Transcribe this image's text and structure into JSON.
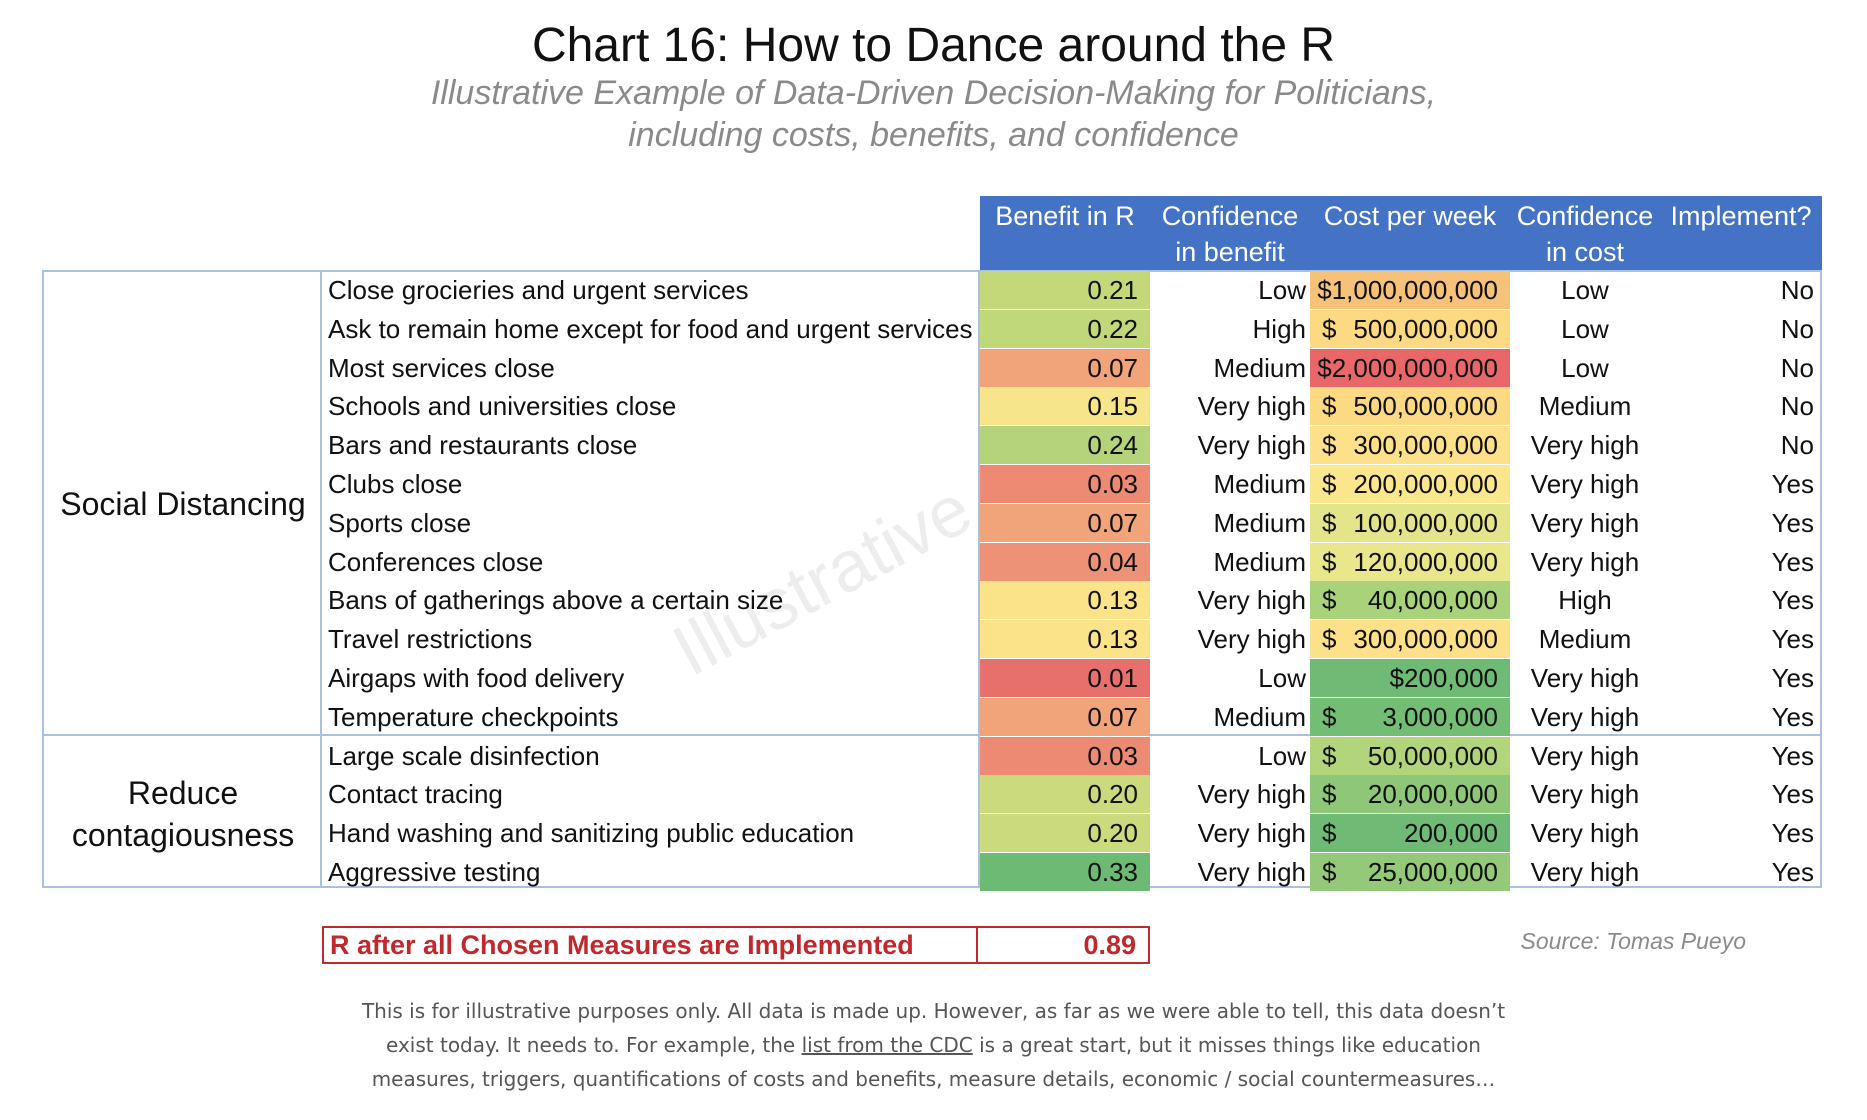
{
  "title": "Chart 16: How to Dance around the R",
  "subtitle_line1": "Illustrative Example of Data-Driven Decision-Making for Politicians,",
  "subtitle_line2": "including costs, benefits, and confidence",
  "watermark": "Illustrative",
  "colors": {
    "header_blue": "#4472c4",
    "border_blue": "#a9c0e3",
    "highlight_red": "#c0282d"
  },
  "chart_data": {
    "type": "table",
    "columns": [
      "Benefit in R",
      "Confidence in benefit",
      "Cost per week",
      "Confidence in cost",
      "Implement?"
    ],
    "column_header_lines": [
      [
        "Benefit in R",
        ""
      ],
      [
        "Confidence",
        "in benefit"
      ],
      [
        "Cost per week",
        ""
      ],
      [
        "Confidence",
        "in cost"
      ],
      [
        "Implement?",
        ""
      ]
    ],
    "groups": [
      {
        "label_lines": [
          "Social Distancing"
        ],
        "rows": [
          0,
          11
        ]
      },
      {
        "label_lines": [
          "Reduce",
          "contagiousness"
        ],
        "rows": [
          12,
          15
        ]
      }
    ],
    "rows": [
      {
        "measure": "Close grocieries and urgent services",
        "benefit": 0.21,
        "benefit_text": "0.21",
        "benefit_color": "#c4d87a",
        "conf_benefit": "Low",
        "cost_dollar": "",
        "cost": "$1,000,000,000",
        "cost_color": "#f6c27a",
        "conf_cost": "Low",
        "implement": "No"
      },
      {
        "measure": "Ask to remain home except for food and urgent services",
        "benefit": 0.22,
        "benefit_text": "0.22",
        "benefit_color": "#c0d77a",
        "conf_benefit": "High",
        "cost_dollar": "$",
        "cost": "500,000,000",
        "cost_color": "#fcd983",
        "conf_cost": "Low",
        "implement": "No"
      },
      {
        "measure": "Most services close",
        "benefit": 0.07,
        "benefit_text": "0.07",
        "benefit_color": "#f1a47a",
        "conf_benefit": "Medium",
        "cost_dollar": "",
        "cost": "$2,000,000,000",
        "cost_color": "#e8686a",
        "conf_cost": "Low",
        "implement": "No"
      },
      {
        "measure": "Schools and universities close",
        "benefit": 0.15,
        "benefit_text": "0.15",
        "benefit_color": "#f7e58b",
        "conf_benefit": "Very high",
        "cost_dollar": "$",
        "cost": "500,000,000",
        "cost_color": "#fcd983",
        "conf_cost": "Medium",
        "implement": "No"
      },
      {
        "measure": "Bars and restaurants close",
        "benefit": 0.24,
        "benefit_text": "0.24",
        "benefit_color": "#b5d37b",
        "conf_benefit": "Very high",
        "cost_dollar": "$",
        "cost": "300,000,000",
        "cost_color": "#fde18a",
        "conf_cost": "Very high",
        "implement": "No"
      },
      {
        "measure": "Clubs close",
        "benefit": 0.03,
        "benefit_text": "0.03",
        "benefit_color": "#ec8a74",
        "conf_benefit": "Medium",
        "cost_dollar": "$",
        "cost": "200,000,000",
        "cost_color": "#fae68d",
        "conf_cost": "Very high",
        "implement": "Yes"
      },
      {
        "measure": "Sports close",
        "benefit": 0.07,
        "benefit_text": "0.07",
        "benefit_color": "#f1a47a",
        "conf_benefit": "Medium",
        "cost_dollar": "$",
        "cost": "100,000,000",
        "cost_color": "#e4e48a",
        "conf_cost": "Very high",
        "implement": "Yes"
      },
      {
        "measure": "Conferences close",
        "benefit": 0.04,
        "benefit_text": "0.04",
        "benefit_color": "#ed9276",
        "conf_benefit": "Medium",
        "cost_dollar": "$",
        "cost": "120,000,000",
        "cost_color": "#e9e68b",
        "conf_cost": "Very high",
        "implement": "Yes"
      },
      {
        "measure": "Bans of gatherings above a certain size",
        "benefit": 0.13,
        "benefit_text": "0.13",
        "benefit_color": "#fbe38a",
        "conf_benefit": "Very high",
        "cost_dollar": "$",
        "cost": "40,000,000",
        "cost_color": "#a9d27b",
        "conf_cost": "High",
        "implement": "Yes"
      },
      {
        "measure": "Travel restrictions",
        "benefit": 0.13,
        "benefit_text": "0.13",
        "benefit_color": "#fbe38a",
        "conf_benefit": "Very high",
        "cost_dollar": "$",
        "cost": "300,000,000",
        "cost_color": "#fde18a",
        "conf_cost": "Medium",
        "implement": "Yes"
      },
      {
        "measure": "Airgaps with food delivery",
        "benefit": 0.01,
        "benefit_text": "0.01",
        "benefit_color": "#e8706c",
        "conf_benefit": "Low",
        "cost_dollar": "",
        "cost": "$200,000",
        "cost_color": "#6fbb75",
        "conf_cost": "Very high",
        "implement": "Yes"
      },
      {
        "measure": "Temperature checkpoints",
        "benefit": 0.07,
        "benefit_text": "0.07",
        "benefit_color": "#f1a47a",
        "conf_benefit": "Medium",
        "cost_dollar": "$",
        "cost": "3,000,000",
        "cost_color": "#74bd75",
        "conf_cost": "Very high",
        "implement": "Yes"
      },
      {
        "measure": "Large scale disinfection",
        "benefit": 0.03,
        "benefit_text": "0.03",
        "benefit_color": "#ec8a74",
        "conf_benefit": "Low",
        "cost_dollar": "$",
        "cost": "50,000,000",
        "cost_color": "#b2d57c",
        "conf_cost": "Very high",
        "implement": "Yes"
      },
      {
        "measure": "Contact tracing",
        "benefit": 0.2,
        "benefit_text": "0.20",
        "benefit_color": "#cbda7c",
        "conf_benefit": "Very high",
        "cost_dollar": "$",
        "cost": "20,000,000",
        "cost_color": "#8ec778",
        "conf_cost": "Very high",
        "implement": "Yes"
      },
      {
        "measure": "Hand washing and sanitizing public education",
        "benefit": 0.2,
        "benefit_text": "0.20",
        "benefit_color": "#cbda7c",
        "conf_benefit": "Very high",
        "cost_dollar": "$",
        "cost": "200,000",
        "cost_color": "#6fbb75",
        "conf_cost": "Very high",
        "implement": "Yes"
      },
      {
        "measure": "Aggressive testing",
        "benefit": 0.33,
        "benefit_text": "0.33",
        "benefit_color": "#6cba73",
        "conf_benefit": "Very high",
        "cost_dollar": "$",
        "cost": "25,000,000",
        "cost_color": "#93c978",
        "conf_cost": "Very high",
        "implement": "Yes"
      }
    ],
    "summary": {
      "label": "R after all Chosen Measures are Implemented",
      "value": "0.89"
    }
  },
  "source": "Source: Tomas Pueyo",
  "footnote": {
    "line1": "This is for illustrative purposes only. All data is made up. However, as far as we were able to tell, this data doesn’t",
    "line2_before": "exist today. It needs to. For example, the ",
    "line2_link": "list from the CDC",
    "line2_after": " is a great start, but it misses things like education",
    "line3": "measures, triggers, quantifications of costs and benefits, measure details, economic / social countermeasures…"
  }
}
